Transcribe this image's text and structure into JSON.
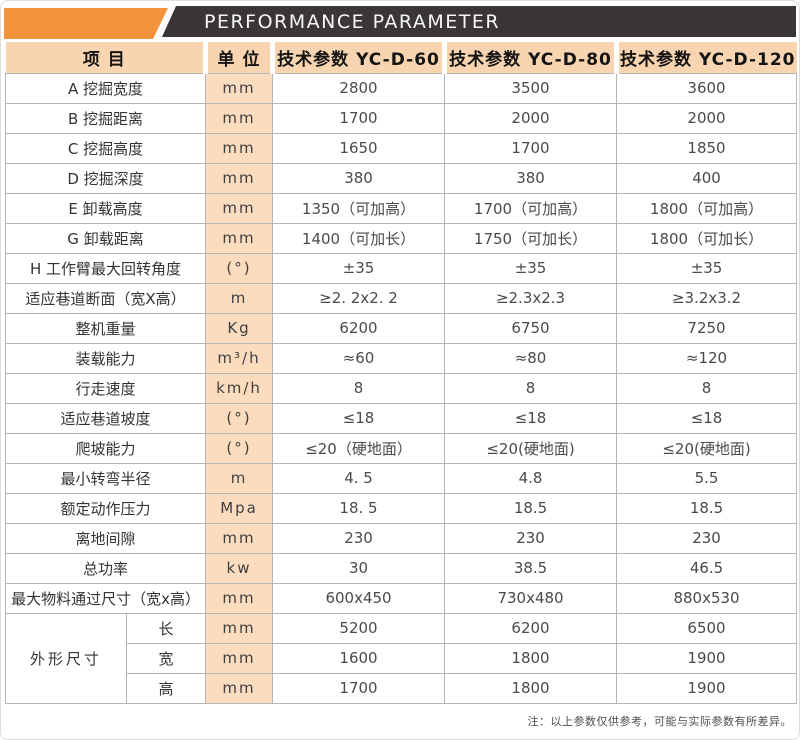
{
  "banner": {
    "title": "PERFORMANCE PARAMETER",
    "accent_color": "#f2923b",
    "bar_color": "#3a3635"
  },
  "table": {
    "headers": [
      "项  目",
      "单  位",
      "技术参数 YC-D-60",
      "技术参数 YC-D-80",
      "技术参数 YC-D-120"
    ],
    "unit_column_color": "#fbdcbf",
    "header_color": "#f8d5b0",
    "rows": [
      {
        "label": "A 挖掘宽度",
        "unit": "mm",
        "values": [
          "2800",
          "3500",
          "3600"
        ]
      },
      {
        "label": "B 挖掘距离",
        "unit": "mm",
        "values": [
          "1700",
          "2000",
          "2000"
        ]
      },
      {
        "label": "C 挖掘高度",
        "unit": "mm",
        "values": [
          "1650",
          "1700",
          "1850"
        ]
      },
      {
        "label": "D 挖掘深度",
        "unit": "mm",
        "values": [
          "380",
          "380",
          "400"
        ]
      },
      {
        "label": "E 卸载高度",
        "unit": "mm",
        "values": [
          "1350（可加高）",
          "1700（可加高）",
          "1800（可加高）"
        ]
      },
      {
        "label": "G 卸载距离",
        "unit": "mm",
        "values": [
          "1400（可加长）",
          "1750（可加长）",
          "1800（可加长）"
        ]
      },
      {
        "label": "H 工作臂最大回转角度",
        "unit": "(°)",
        "values": [
          "±35",
          "±35",
          "±35"
        ]
      },
      {
        "label": "适应巷道断面（宽X高）",
        "unit": "m",
        "values": [
          "≥2. 2x2. 2",
          "≥2.3x2.3",
          "≥3.2x3.2"
        ]
      },
      {
        "label": "整机重量",
        "unit": "Kg",
        "values": [
          "6200",
          "6750",
          "7250"
        ]
      },
      {
        "label": "装载能力",
        "unit": "m³/h",
        "values": [
          "≈60",
          "≈80",
          "≈120"
        ]
      },
      {
        "label": "行走速度",
        "unit": "km/h",
        "values": [
          "8",
          "8",
          "8"
        ]
      },
      {
        "label": "适应巷道坡度",
        "unit": "(°)",
        "values": [
          "≤18",
          "≤18",
          "≤18"
        ]
      },
      {
        "label": "爬坡能力",
        "unit": "(°)",
        "values": [
          "≤20（硬地面）",
          "≤20(硬地面)",
          "≤20(硬地面)"
        ]
      },
      {
        "label": "最小转弯半径",
        "unit": "m",
        "values": [
          "4. 5",
          "4.8",
          "5.5"
        ]
      },
      {
        "label": "额定动作压力",
        "unit": "Mpa",
        "values": [
          "18. 5",
          "18.5",
          "18.5"
        ]
      },
      {
        "label": "离地间隙",
        "unit": "mm",
        "values": [
          "230",
          "230",
          "230"
        ]
      },
      {
        "label": "总功率",
        "unit": "kw",
        "values": [
          "30",
          "38.5",
          "46.5"
        ]
      },
      {
        "label": "最大物料通过尺寸（宽x高）",
        "unit": "mm",
        "values": [
          "600x450",
          "730x480",
          "880x530"
        ]
      }
    ],
    "dimension_group": {
      "label": "外形尺寸",
      "rows": [
        {
          "label": "长",
          "unit": "mm",
          "values": [
            "5200",
            "6200",
            "6500"
          ]
        },
        {
          "label": "宽",
          "unit": "mm",
          "values": [
            "1600",
            "1800",
            "1900"
          ]
        },
        {
          "label": "高",
          "unit": "mm",
          "values": [
            "1700",
            "1800",
            "1900"
          ]
        }
      ]
    }
  },
  "footnote": "注：以上参数仅供参考，可能与实际参数有所差异。"
}
